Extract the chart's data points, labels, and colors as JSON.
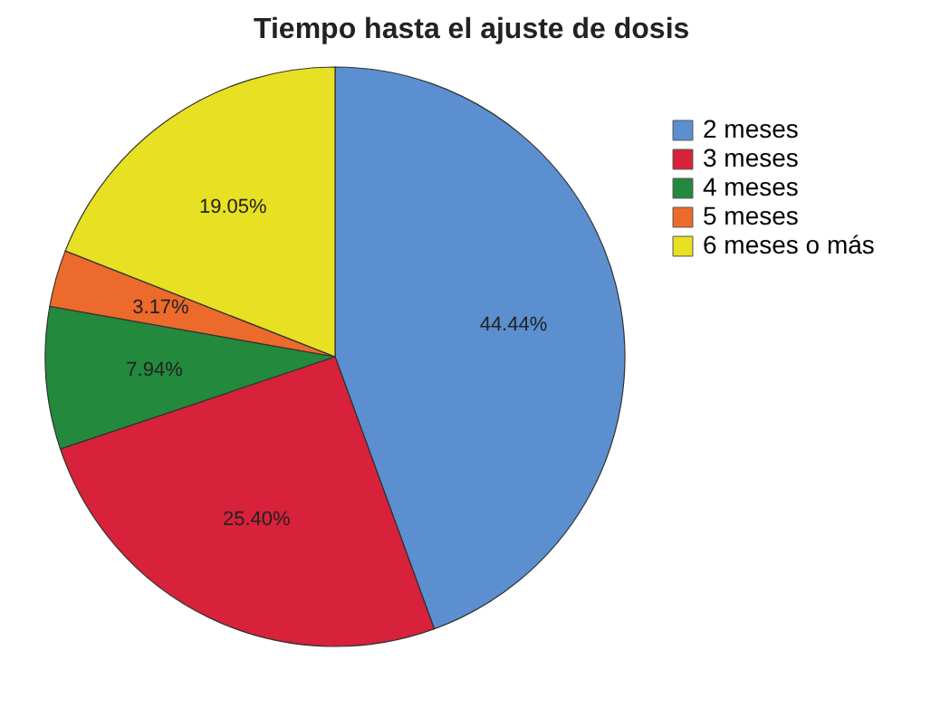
{
  "chart_data": {
    "type": "pie",
    "title": "Tiempo hasta el ajuste de dosis",
    "categories": [
      "2 meses",
      "3 meses",
      "4 meses",
      "5 meses",
      "6 meses o más"
    ],
    "values": [
      44.44,
      25.4,
      7.94,
      3.17,
      19.05
    ],
    "value_labels": [
      "44.44%",
      "25.40%",
      "7.94%",
      "3.17%",
      "19.05%"
    ],
    "colors": [
      "#5b8fd0",
      "#d8213a",
      "#23893c",
      "#ec6a2c",
      "#e8e022"
    ],
    "legend": "right"
  }
}
